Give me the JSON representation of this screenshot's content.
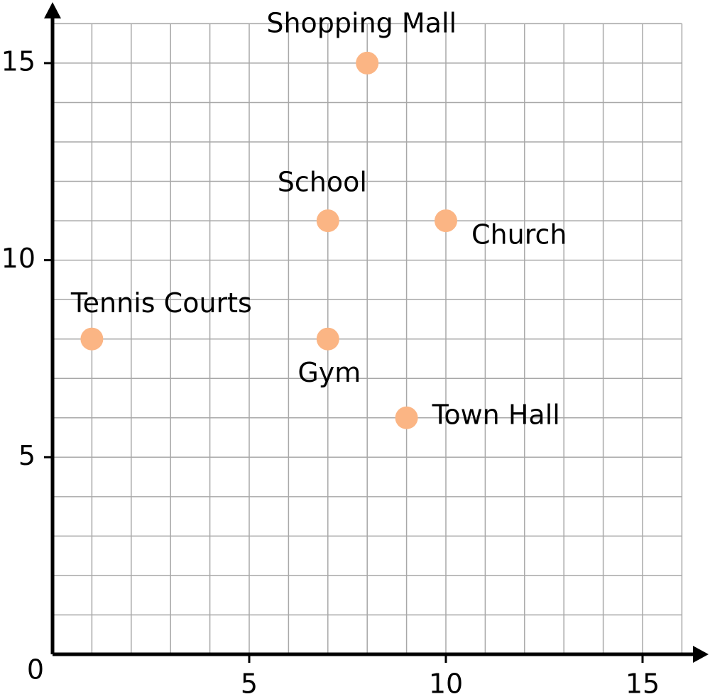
{
  "chart_data": {
    "type": "scatter",
    "x": [
      8,
      7,
      10,
      1,
      7,
      9
    ],
    "values": [
      15,
      11,
      11,
      8,
      8,
      6
    ],
    "point_labels": [
      "Shopping Mall",
      "School",
      "Church",
      "Tennis Courts",
      "Gym",
      "Town Hall"
    ],
    "color": "#fbb584",
    "xlim": [
      0,
      16
    ],
    "ylim": [
      0,
      16
    ],
    "xticks": [
      0,
      5,
      10,
      15
    ],
    "yticks": [
      5,
      10,
      15
    ],
    "grid": true,
    "xgrid": [
      1,
      2,
      3,
      4,
      5,
      6,
      7,
      8,
      9,
      10,
      11,
      12,
      13,
      14,
      15,
      16
    ],
    "ygrid": [
      1,
      2,
      3,
      4,
      5,
      6,
      7,
      8,
      9,
      10,
      11,
      12,
      13,
      14,
      15,
      16
    ]
  }
}
